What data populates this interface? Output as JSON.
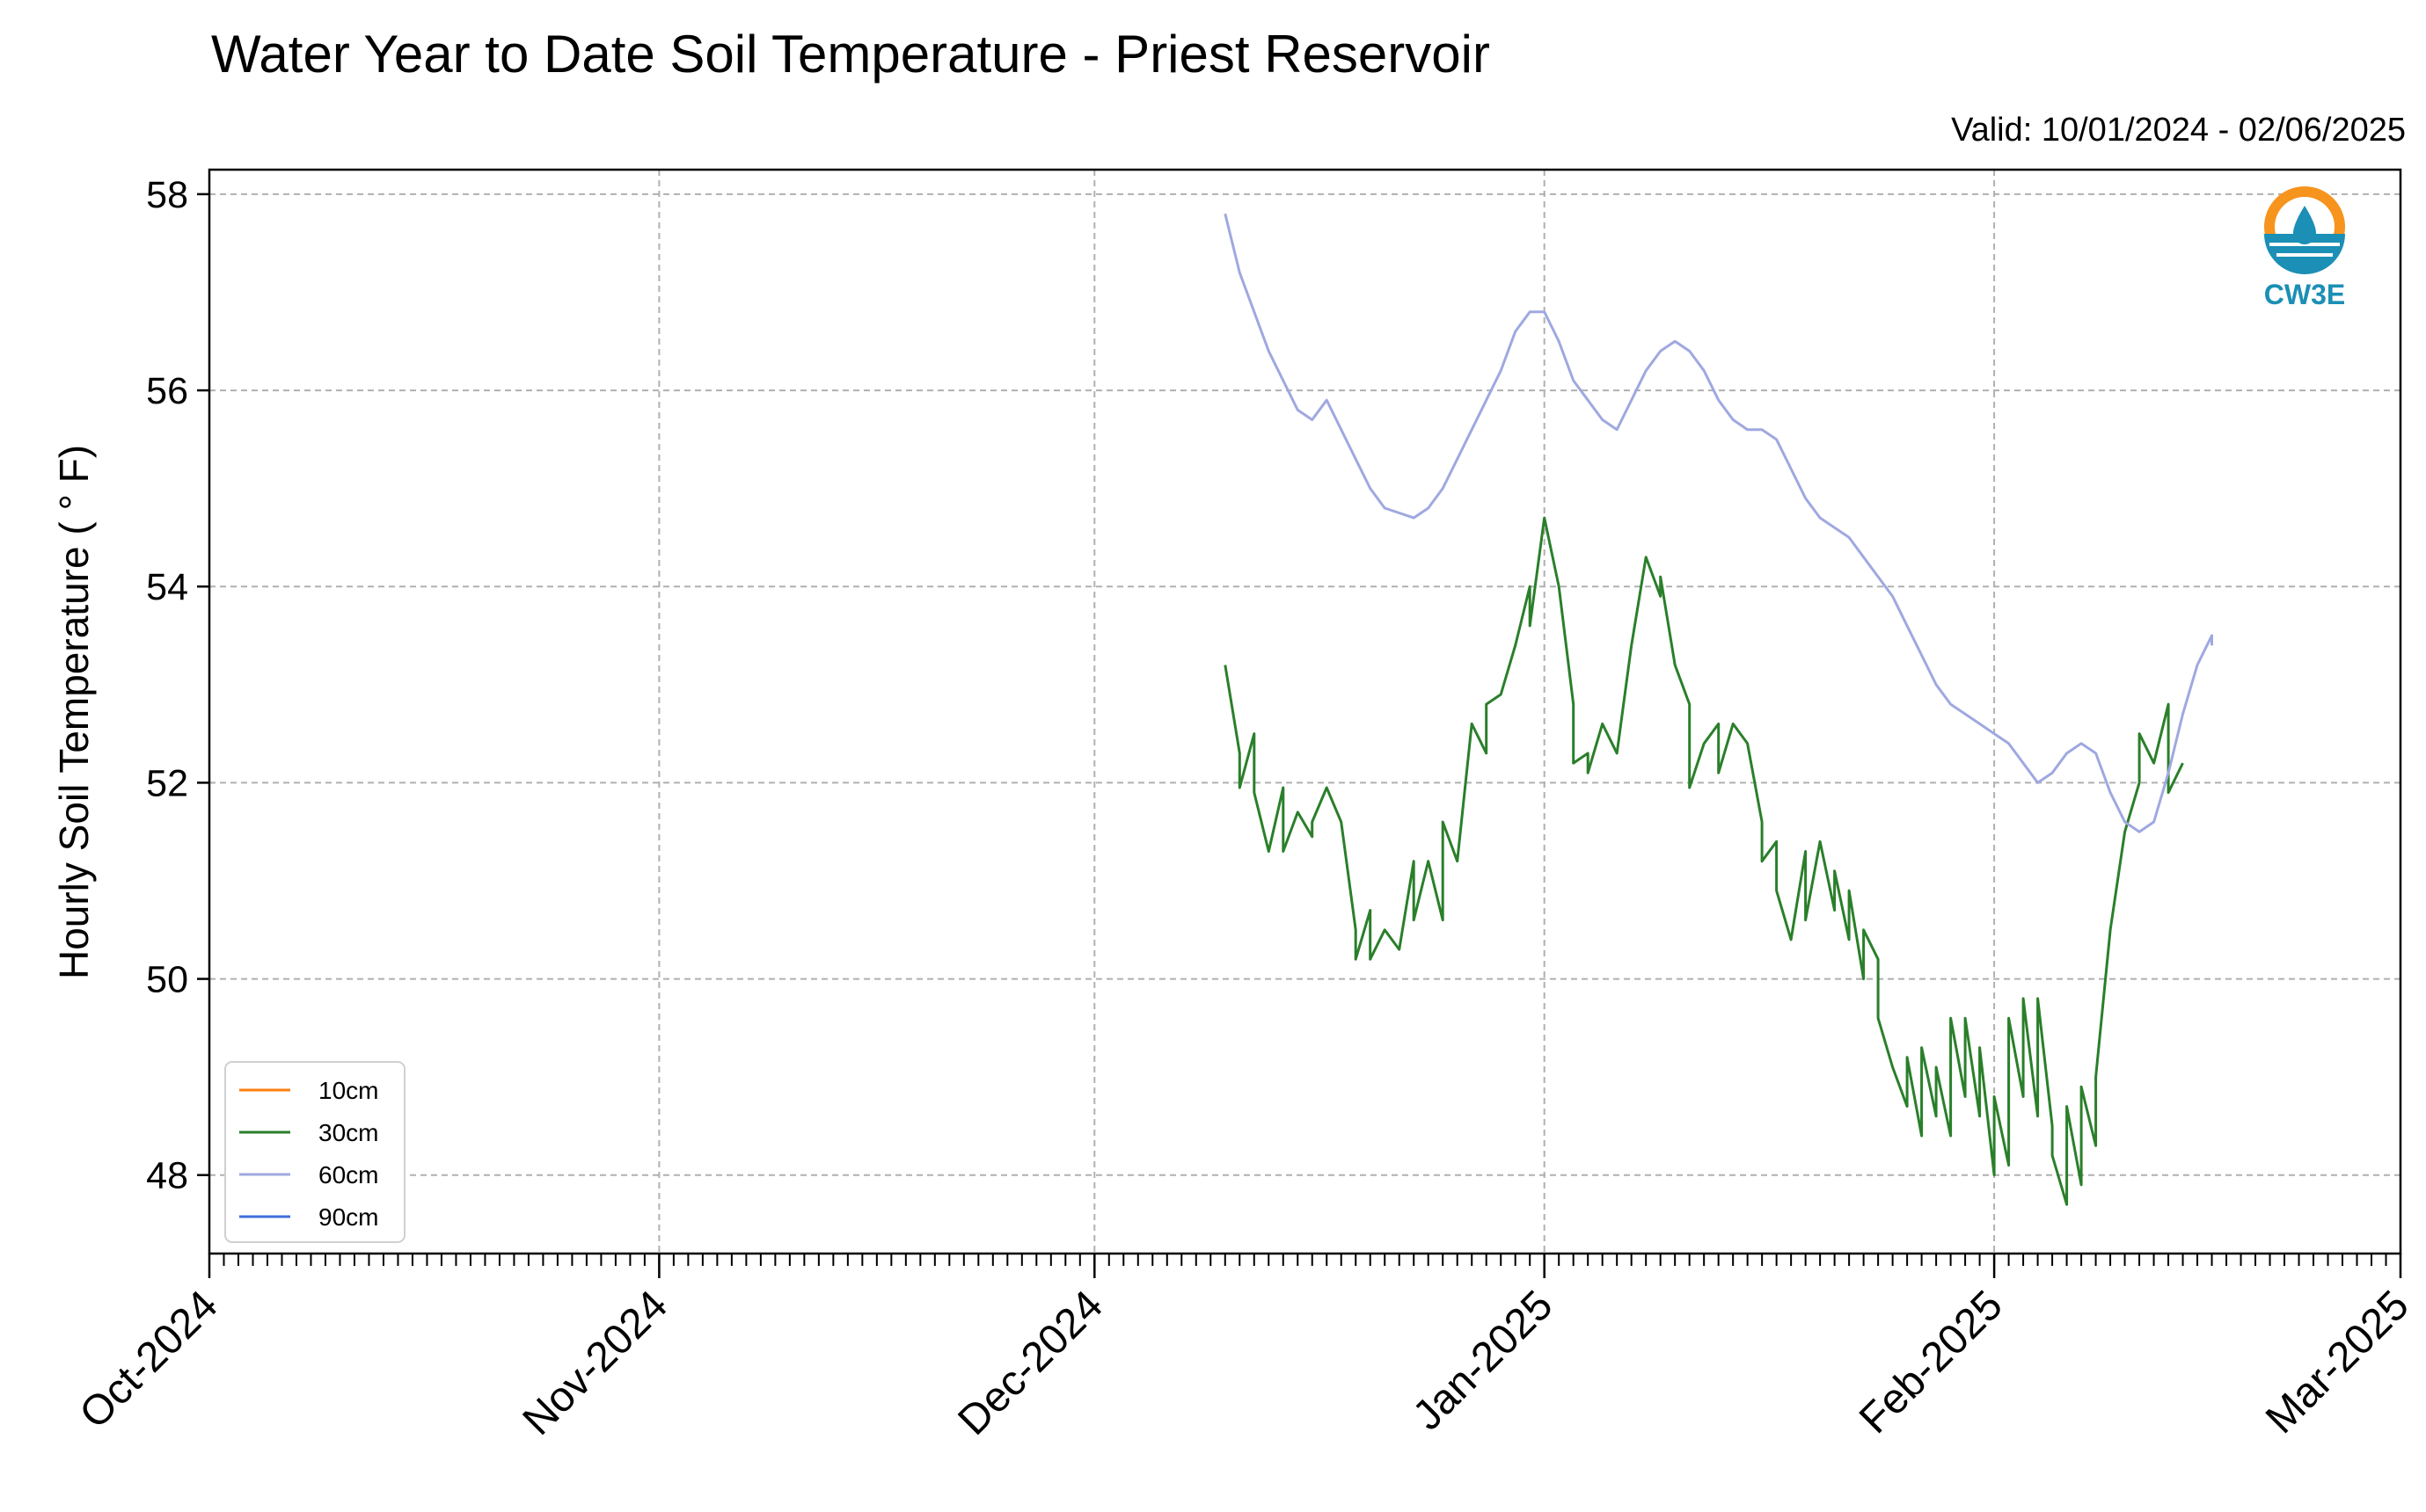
{
  "chart_data": {
    "type": "line",
    "title": "Water Year to Date Soil Temperature - Priest Reservoir",
    "subtitle": "Valid: 10/01/2024 - 02/06/2025",
    "xlabel": "",
    "ylabel": "Hourly Soil Temperature ($^\\circ$F)",
    "ylabel_display": "Hourly Soil Temperature ( ° F)",
    "xlim": [
      "2024-10-01",
      "2025-03-01"
    ],
    "ylim": [
      47.2,
      58.25
    ],
    "x_ticks": [
      {
        "date": "2024-10-01",
        "label": "Oct-2024"
      },
      {
        "date": "2024-11-01",
        "label": "Nov-2024"
      },
      {
        "date": "2024-12-01",
        "label": "Dec-2024"
      },
      {
        "date": "2025-01-01",
        "label": "Jan-2025"
      },
      {
        "date": "2025-02-01",
        "label": "Feb-2025"
      },
      {
        "date": "2025-03-01",
        "label": "Mar-2025"
      }
    ],
    "y_ticks": [
      48,
      50,
      52,
      54,
      56,
      58
    ],
    "grid": true,
    "legend_position": "lower-left",
    "logo_text": "CW3E",
    "series": [
      {
        "name": "10cm",
        "color": "#ff7f0e",
        "points": []
      },
      {
        "name": "30cm",
        "color": "#2a7f2a",
        "points": [
          [
            "2024-12-10",
            53.2
          ],
          [
            "2024-12-11",
            52.3
          ],
          [
            "2024-12-11",
            51.95
          ],
          [
            "2024-12-12",
            52.5
          ],
          [
            "2024-12-12",
            51.9
          ],
          [
            "2024-12-13",
            51.3
          ],
          [
            "2024-12-14",
            51.95
          ],
          [
            "2024-12-14",
            51.3
          ],
          [
            "2024-12-15",
            51.7
          ],
          [
            "2024-12-16",
            51.45
          ],
          [
            "2024-12-16",
            51.6
          ],
          [
            "2024-12-17",
            51.95
          ],
          [
            "2024-12-18",
            51.6
          ],
          [
            "2024-12-19",
            50.5
          ],
          [
            "2024-12-19",
            50.2
          ],
          [
            "2024-12-20",
            50.7
          ],
          [
            "2024-12-20",
            50.2
          ],
          [
            "2024-12-21",
            50.5
          ],
          [
            "2024-12-22",
            50.3
          ],
          [
            "2024-12-23",
            51.2
          ],
          [
            "2024-12-23",
            50.6
          ],
          [
            "2024-12-24",
            51.2
          ],
          [
            "2024-12-25",
            50.6
          ],
          [
            "2024-12-25",
            51.6
          ],
          [
            "2024-12-26",
            51.2
          ],
          [
            "2024-12-27",
            52.6
          ],
          [
            "2024-12-28",
            52.3
          ],
          [
            "2024-12-28",
            52.8
          ],
          [
            "2024-12-29",
            52.9
          ],
          [
            "2024-12-30",
            53.4
          ],
          [
            "2024-12-31",
            54.0
          ],
          [
            "2024-12-31",
            53.6
          ],
          [
            "2025-01-01",
            54.7
          ],
          [
            "2025-01-02",
            54.0
          ],
          [
            "2025-01-03",
            52.8
          ],
          [
            "2025-01-03",
            52.2
          ],
          [
            "2025-01-04",
            52.3
          ],
          [
            "2025-01-04",
            52.1
          ],
          [
            "2025-01-05",
            52.6
          ],
          [
            "2025-01-06",
            52.3
          ],
          [
            "2025-01-07",
            53.4
          ],
          [
            "2025-01-08",
            54.3
          ],
          [
            "2025-01-09",
            53.9
          ],
          [
            "2025-01-09",
            54.1
          ],
          [
            "2025-01-10",
            53.2
          ],
          [
            "2025-01-11",
            52.8
          ],
          [
            "2025-01-11",
            51.95
          ],
          [
            "2025-01-12",
            52.4
          ],
          [
            "2025-01-13",
            52.6
          ],
          [
            "2025-01-13",
            52.1
          ],
          [
            "2025-01-14",
            52.6
          ],
          [
            "2025-01-15",
            52.4
          ],
          [
            "2025-01-16",
            51.6
          ],
          [
            "2025-01-16",
            51.2
          ],
          [
            "2025-01-17",
            51.4
          ],
          [
            "2025-01-17",
            50.9
          ],
          [
            "2025-01-18",
            50.4
          ],
          [
            "2025-01-19",
            51.3
          ],
          [
            "2025-01-19",
            50.6
          ],
          [
            "2025-01-20",
            51.4
          ],
          [
            "2025-01-21",
            50.7
          ],
          [
            "2025-01-21",
            51.1
          ],
          [
            "2025-01-22",
            50.4
          ],
          [
            "2025-01-22",
            50.9
          ],
          [
            "2025-01-23",
            50.0
          ],
          [
            "2025-01-23",
            50.5
          ],
          [
            "2025-01-24",
            50.2
          ],
          [
            "2025-01-24",
            49.6
          ],
          [
            "2025-01-25",
            49.1
          ],
          [
            "2025-01-26",
            48.7
          ],
          [
            "2025-01-26",
            49.2
          ],
          [
            "2025-01-27",
            48.4
          ],
          [
            "2025-01-27",
            49.3
          ],
          [
            "2025-01-28",
            48.6
          ],
          [
            "2025-01-28",
            49.1
          ],
          [
            "2025-01-29",
            48.4
          ],
          [
            "2025-01-29",
            49.6
          ],
          [
            "2025-01-30",
            48.8
          ],
          [
            "2025-01-30",
            49.6
          ],
          [
            "2025-01-31",
            48.6
          ],
          [
            "2025-01-31",
            49.3
          ],
          [
            "2025-02-01",
            48.0
          ],
          [
            "2025-02-01",
            48.8
          ],
          [
            "2025-02-02",
            48.1
          ],
          [
            "2025-02-02",
            49.6
          ],
          [
            "2025-02-03",
            48.8
          ],
          [
            "2025-02-03",
            49.8
          ],
          [
            "2025-02-04",
            48.6
          ],
          [
            "2025-02-04",
            49.8
          ],
          [
            "2025-02-05",
            48.5
          ],
          [
            "2025-02-05",
            48.2
          ],
          [
            "2025-02-06",
            47.7
          ],
          [
            "2025-02-06",
            48.7
          ],
          [
            "2025-02-07",
            47.9
          ],
          [
            "2025-02-07",
            48.9
          ],
          [
            "2025-02-08",
            48.3
          ],
          [
            "2025-02-08",
            49.0
          ],
          [
            "2025-02-09",
            50.5
          ],
          [
            "2025-02-10",
            51.5
          ],
          [
            "2025-02-11",
            52.0
          ],
          [
            "2025-02-11",
            52.5
          ],
          [
            "2025-02-12",
            52.2
          ],
          [
            "2025-02-13",
            52.8
          ],
          [
            "2025-02-13",
            51.9
          ],
          [
            "2025-02-14",
            52.2
          ]
        ]
      },
      {
        "name": "60cm",
        "color": "#9fa8e0",
        "points": [
          [
            "2024-12-10",
            57.8
          ],
          [
            "2024-12-11",
            57.2
          ],
          [
            "2024-12-12",
            56.8
          ],
          [
            "2024-12-13",
            56.4
          ],
          [
            "2024-12-14",
            56.1
          ],
          [
            "2024-12-15",
            55.8
          ],
          [
            "2024-12-16",
            55.7
          ],
          [
            "2024-12-17",
            55.9
          ],
          [
            "2024-12-18",
            55.6
          ],
          [
            "2024-12-19",
            55.3
          ],
          [
            "2024-12-20",
            55.0
          ],
          [
            "2024-12-21",
            54.8
          ],
          [
            "2024-12-22",
            54.75
          ],
          [
            "2024-12-23",
            54.7
          ],
          [
            "2024-12-24",
            54.8
          ],
          [
            "2024-12-25",
            55.0
          ],
          [
            "2024-12-26",
            55.3
          ],
          [
            "2024-12-27",
            55.6
          ],
          [
            "2024-12-28",
            55.9
          ],
          [
            "2024-12-29",
            56.2
          ],
          [
            "2024-12-30",
            56.6
          ],
          [
            "2024-12-31",
            56.8
          ],
          [
            "2025-01-01",
            56.8
          ],
          [
            "2025-01-02",
            56.5
          ],
          [
            "2025-01-03",
            56.1
          ],
          [
            "2025-01-04",
            55.9
          ],
          [
            "2025-01-05",
            55.7
          ],
          [
            "2025-01-06",
            55.6
          ],
          [
            "2025-01-07",
            55.9
          ],
          [
            "2025-01-08",
            56.2
          ],
          [
            "2025-01-09",
            56.4
          ],
          [
            "2025-01-10",
            56.5
          ],
          [
            "2025-01-11",
            56.4
          ],
          [
            "2025-01-12",
            56.2
          ],
          [
            "2025-01-13",
            55.9
          ],
          [
            "2025-01-14",
            55.7
          ],
          [
            "2025-01-15",
            55.6
          ],
          [
            "2025-01-16",
            55.6
          ],
          [
            "2025-01-17",
            55.5
          ],
          [
            "2025-01-18",
            55.2
          ],
          [
            "2025-01-19",
            54.9
          ],
          [
            "2025-01-20",
            54.7
          ],
          [
            "2025-01-21",
            54.6
          ],
          [
            "2025-01-22",
            54.5
          ],
          [
            "2025-01-23",
            54.3
          ],
          [
            "2025-01-24",
            54.1
          ],
          [
            "2025-01-25",
            53.9
          ],
          [
            "2025-01-26",
            53.6
          ],
          [
            "2025-01-27",
            53.3
          ],
          [
            "2025-01-28",
            53.0
          ],
          [
            "2025-01-29",
            52.8
          ],
          [
            "2025-01-30",
            52.7
          ],
          [
            "2025-01-31",
            52.6
          ],
          [
            "2025-02-01",
            52.5
          ],
          [
            "2025-02-02",
            52.4
          ],
          [
            "2025-02-03",
            52.2
          ],
          [
            "2025-02-04",
            52.0
          ],
          [
            "2025-02-05",
            52.1
          ],
          [
            "2025-02-06",
            52.3
          ],
          [
            "2025-02-07",
            52.4
          ],
          [
            "2025-02-08",
            52.3
          ],
          [
            "2025-02-09",
            51.9
          ],
          [
            "2025-02-10",
            51.6
          ],
          [
            "2025-02-11",
            51.5
          ],
          [
            "2025-02-12",
            51.6
          ],
          [
            "2025-02-13",
            52.1
          ],
          [
            "2025-02-14",
            52.7
          ],
          [
            "2025-02-15",
            53.2
          ],
          [
            "2025-02-16",
            53.5
          ],
          [
            "2025-02-16",
            53.4
          ]
        ]
      },
      {
        "name": "90cm",
        "color": "#3f6fe0",
        "points": []
      }
    ]
  }
}
